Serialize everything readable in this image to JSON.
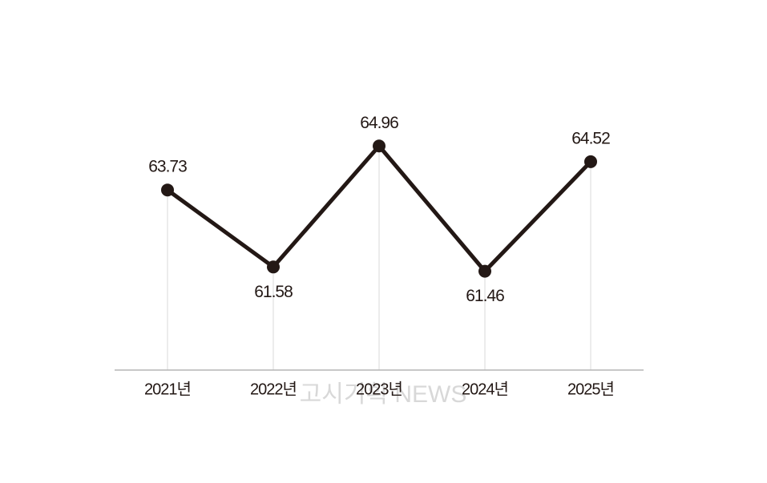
{
  "chart_data": {
    "type": "line",
    "categories": [
      "2021년",
      "2022년",
      "2023년",
      "2024년",
      "2025년"
    ],
    "values": [
      63.73,
      61.58,
      64.96,
      61.46,
      64.52
    ],
    "color": "#231815",
    "ylim": [
      58.7,
      66.8
    ],
    "watermark": "고시기획 NEWS"
  }
}
